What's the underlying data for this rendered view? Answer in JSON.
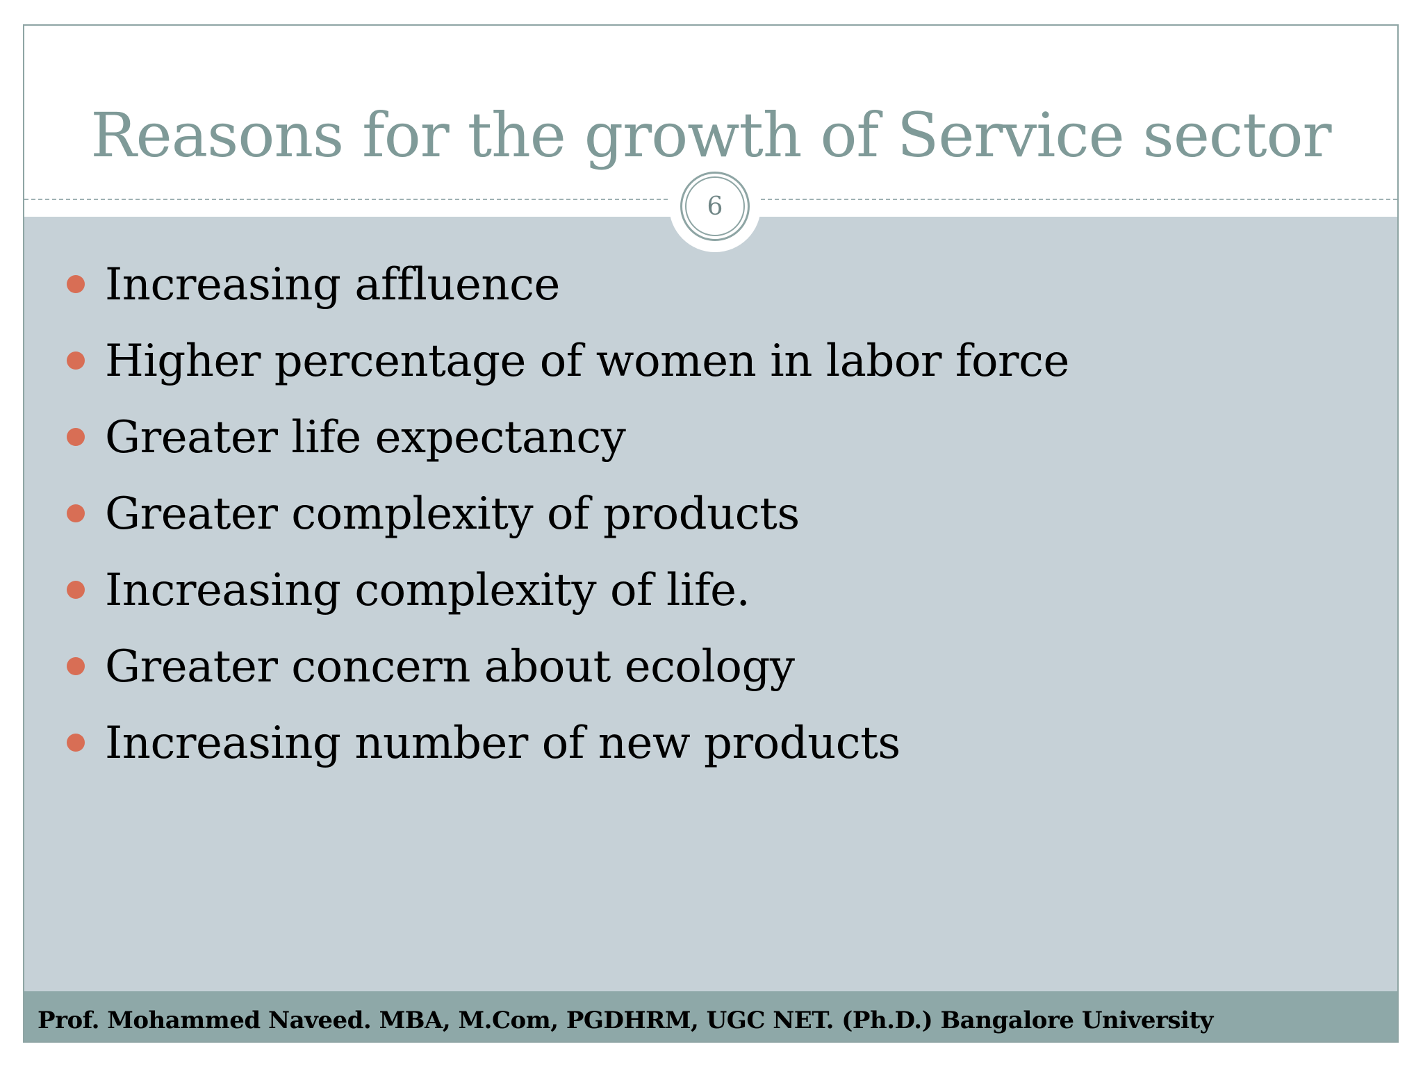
{
  "slide": {
    "title": "Reasons for the growth of Service sector",
    "number": "6",
    "bullets": [
      "Increasing affluence",
      "Higher percentage of women in labor force",
      "Greater life expectancy",
      "Greater complexity of products",
      "Increasing complexity of life.",
      "Greater concern about ecology",
      "Increasing number of new products"
    ],
    "footer": "Prof. Mohammed Naveed. MBA, M.Com, PGDHRM, UGC NET. (Ph.D.) Bangalore University"
  },
  "colors": {
    "title": "#7f9a98",
    "panel": "#c6d1d7",
    "bullet": "#d86e55",
    "footer_bar": "#8ea8a8",
    "frame": "#8ea5a4"
  }
}
